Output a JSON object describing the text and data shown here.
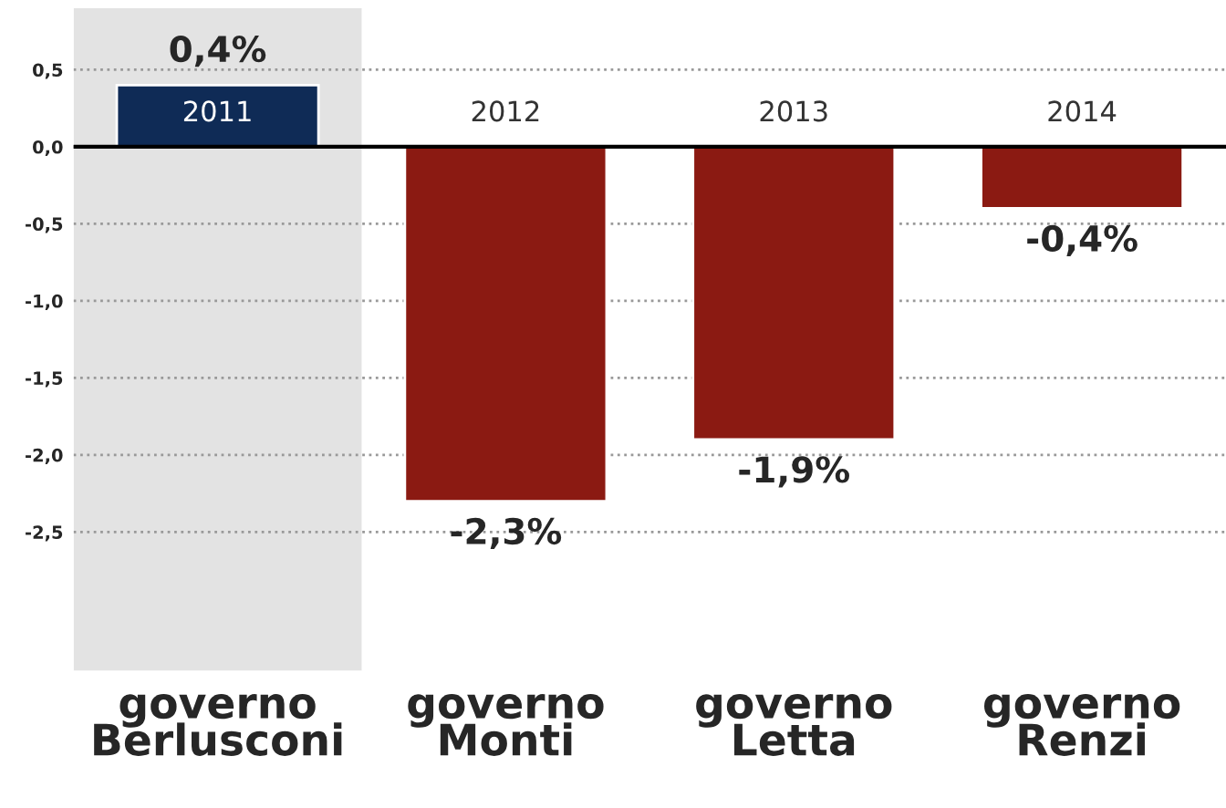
{
  "chart_data": {
    "type": "bar",
    "categories": [
      "governo\nBerlusconi",
      "governo\nMonti",
      "governo\nLetta",
      "governo\nRenzi"
    ],
    "values": [
      0.4,
      -2.3,
      -1.9,
      -0.4
    ],
    "colors": [
      "#0f2b56",
      "#8b1a12",
      "#8b1a12",
      "#8b1a12"
    ],
    "value_labels": [
      "0,4%",
      "-2,3%",
      "-1,9%",
      "-0,4%"
    ],
    "ylim": [
      -3.4,
      0.9
    ],
    "yticks": [
      {
        "value": 0.5,
        "label": "0,5"
      },
      {
        "value": 0.0,
        "label": "0,0"
      },
      {
        "value": -0.5,
        "label": "-0,5"
      },
      {
        "value": -1.0,
        "label": "-1,0"
      },
      {
        "value": -1.5,
        "label": "-1,5"
      },
      {
        "value": -2.0,
        "label": "-2,0"
      },
      {
        "value": -2.5,
        "label": "-2,5"
      }
    ],
    "grid": "y",
    "ref_lines": [
      {
        "axis": "y",
        "value": 0,
        "color": "#000000"
      }
    ],
    "annotations": [
      "2011",
      "2012",
      "2013",
      "2014"
    ]
  }
}
